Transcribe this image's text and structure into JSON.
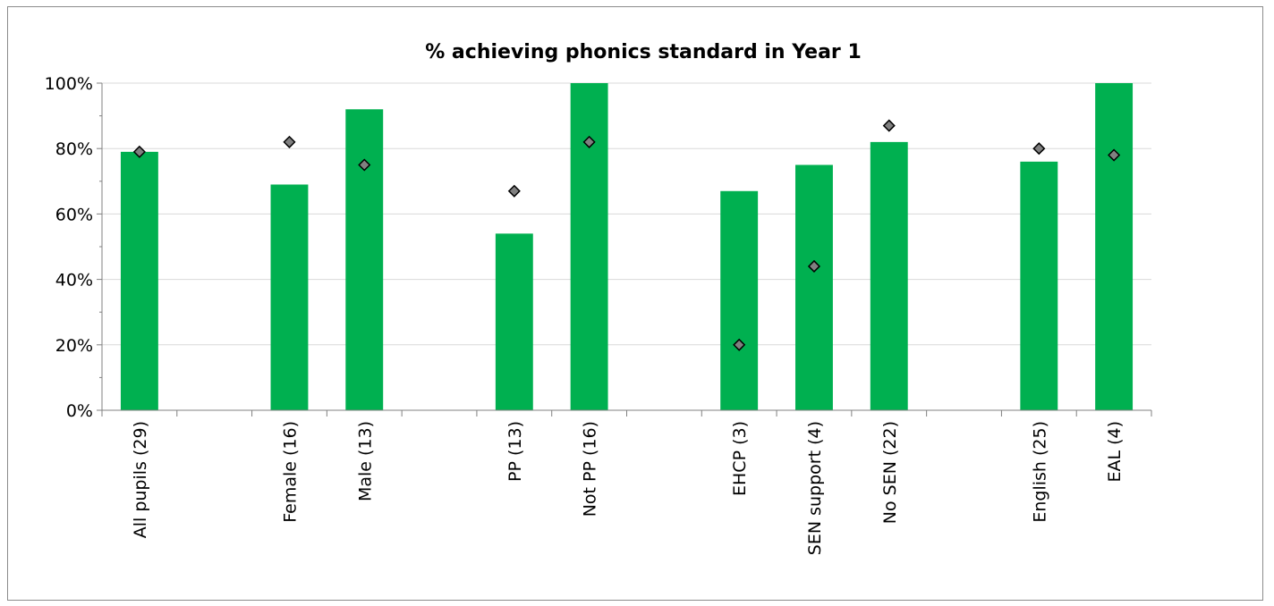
{
  "chart_data": {
    "type": "bar",
    "title": "% achieving phonics standard in Year 1",
    "xlabel": "",
    "ylabel": "",
    "ylim": [
      0,
      100
    ],
    "y_ticks": [
      "0%",
      "20%",
      "40%",
      "60%",
      "80%",
      "100%"
    ],
    "grid": true,
    "slots": 14,
    "categories": [
      "All pupils (29)",
      "Female (16)",
      "Male (13)",
      "PP (13)",
      "Not PP (16)",
      "EHCP (3)",
      "SEN support (4)",
      "No SEN (22)",
      "English (25)",
      "EAL (4)"
    ],
    "slot_index": [
      0,
      2,
      3,
      5,
      6,
      8,
      9,
      10,
      12,
      13
    ],
    "series": [
      {
        "type": "bar",
        "values": [
          79,
          69,
          92,
          54,
          100,
          67,
          75,
          82,
          76,
          100
        ]
      },
      {
        "type": "marker",
        "values": [
          79,
          82,
          75,
          67,
          82,
          20,
          44,
          87,
          80,
          78
        ]
      }
    ],
    "colors": {
      "bar": "#00b050",
      "marker_fill": "#808080",
      "marker_stroke": "#000000",
      "grid": "#d9d9d9",
      "axis": "#808080"
    }
  }
}
